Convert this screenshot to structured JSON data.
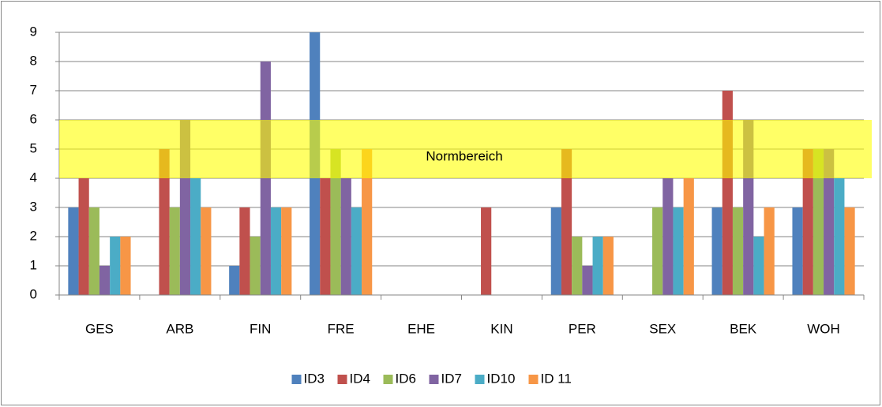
{
  "chart_data": {
    "type": "bar",
    "categories": [
      "GES",
      "ARB",
      "FIN",
      "FRE",
      "EHE",
      "KIN",
      "PER",
      "SEX",
      "BEK",
      "WOH"
    ],
    "series": [
      {
        "name": "ID3",
        "color": "#4f81bd",
        "values": [
          3,
          0,
          1,
          9,
          0,
          0,
          3,
          0,
          3,
          3
        ]
      },
      {
        "name": "ID4",
        "color": "#c0504d",
        "values": [
          4,
          5,
          3,
          4,
          0,
          3,
          5,
          0,
          7,
          5
        ]
      },
      {
        "name": "ID6",
        "color": "#9bbb59",
        "values": [
          3,
          3,
          2,
          5,
          0,
          0,
          2,
          3,
          3,
          5
        ]
      },
      {
        "name": "ID7",
        "color": "#8064a2",
        "values": [
          1,
          6,
          8,
          4,
          0,
          0,
          1,
          4,
          6,
          5
        ]
      },
      {
        "name": "ID10",
        "color": "#4bacc6",
        "values": [
          2,
          4,
          3,
          3,
          0,
          0,
          2,
          3,
          2,
          4
        ]
      },
      {
        "name": "ID 11",
        "color": "#f79646",
        "values": [
          2,
          3,
          3,
          5,
          0,
          0,
          2,
          4,
          3,
          3
        ]
      }
    ],
    "ylim": [
      0,
      9
    ],
    "yticks": [
      0,
      1,
      2,
      3,
      4,
      5,
      6,
      7,
      8,
      9
    ],
    "grid": true,
    "band": {
      "label": "Normbereich",
      "range": [
        4,
        6
      ],
      "color": "#ffff00"
    },
    "legend": "bottom"
  }
}
